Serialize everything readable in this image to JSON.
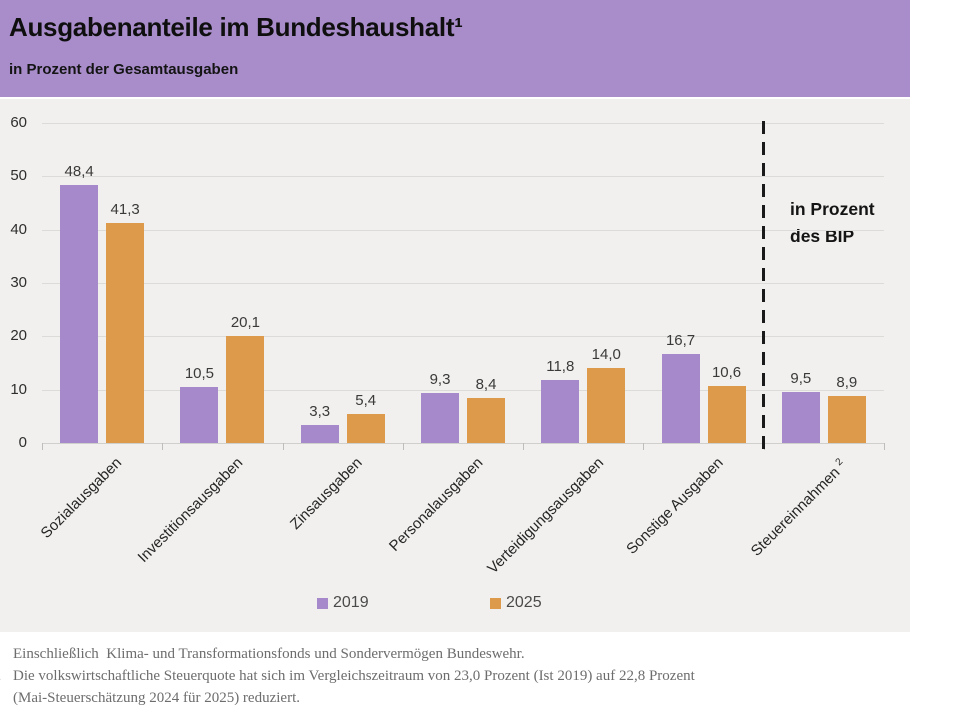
{
  "header": {
    "title": "Ausgabenanteile im Bundeshaushalt¹",
    "subtitle": "in Prozent der Gesamtausgaben"
  },
  "chart_data": {
    "type": "bar",
    "title": "Ausgabenanteile im Bundeshaushalt¹",
    "subtitle": "in Prozent der Gesamtausgaben",
    "categories": [
      "Sozialausgaben",
      "Investitionsausgaben",
      "Zinsausgaben",
      "Personalausgaben",
      "Verteidigungsausgaben",
      "Sonstige Ausgaben",
      "Steuereinnahmen ²"
    ],
    "series": [
      {
        "name": "2019",
        "color": "#a689cb",
        "values": [
          48.4,
          10.5,
          3.3,
          9.3,
          11.8,
          16.7,
          9.5
        ]
      },
      {
        "name": "2025",
        "color": "#dd9a4b",
        "values": [
          41.3,
          20.1,
          5.4,
          8.4,
          14.0,
          10.6,
          8.9
        ]
      }
    ],
    "ylabel": "",
    "xlabel": "",
    "ylim": [
      0,
      60
    ],
    "yticks": [
      0,
      10,
      20,
      30,
      40,
      50,
      60
    ],
    "grid": true,
    "decimal_separator": ",",
    "legend_position": "bottom",
    "annotation": {
      "line1": "in Prozent",
      "line2": "des BIP",
      "separator_before_category_index": 6
    }
  },
  "colors": {
    "header_background": "#a88dca",
    "chart_background": "#f1f0ee",
    "series_2019": "#a689cb",
    "series_2025": "#dd9a4b",
    "separator_line": "#1a1a1a"
  },
  "footnotes": [
    {
      "marker": "1.",
      "line1": "Einschließlich  Klima- und Transformationsfonds und Sondervermögen Bundeswehr.",
      "line2": ""
    },
    {
      "marker": "2",
      "line1": "Die volkswirtschaftliche Steuerquote hat sich im Vergleichszeitraum von 23,0 Prozent (Ist 2019) auf 22,8 Prozent",
      "line2": "(Mai-Steuerschätzung 2024 für 2025) reduziert."
    }
  ]
}
